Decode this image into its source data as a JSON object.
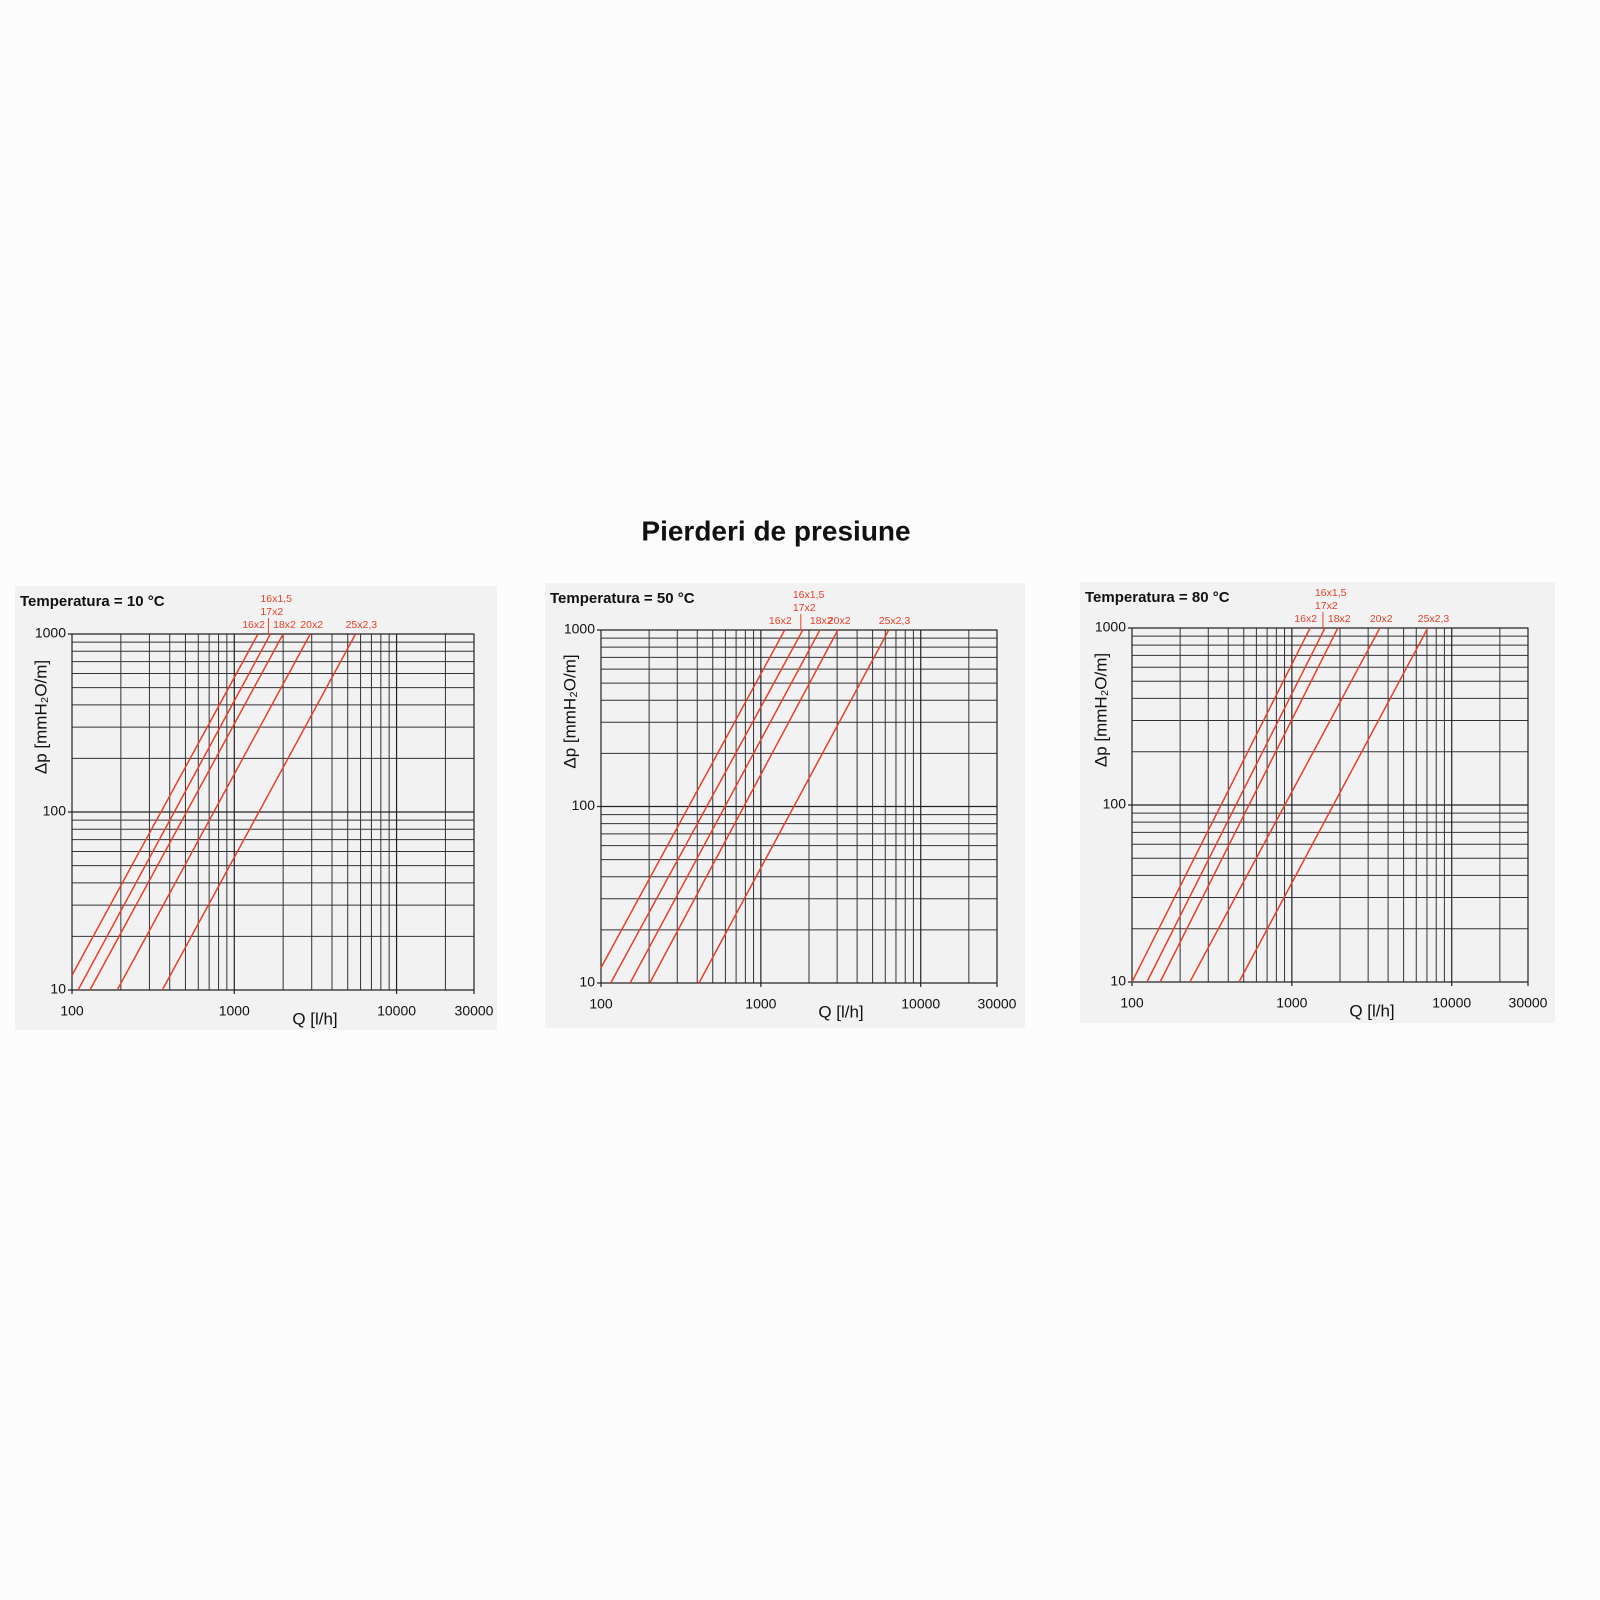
{
  "title": "Pierderi de presiune",
  "chart_data": [
    {
      "type": "line",
      "title": "Temperatura = 10 °C",
      "xlabel": "Q [l/h]",
      "ylabel": "Δp [mmH₂O/m]",
      "xscale": "log",
      "yscale": "log",
      "grid": true,
      "color": "#e8402a",
      "xlim": [
        100,
        30000
      ],
      "ylim": [
        10,
        1000
      ],
      "xticks": [
        100,
        1000,
        10000,
        30000
      ],
      "yticks": [
        10,
        100,
        1000
      ],
      "xminor": [
        200,
        300,
        400,
        500,
        600,
        700,
        800,
        900,
        2000,
        3000,
        4000,
        5000,
        6000,
        7000,
        8000,
        9000,
        20000
      ],
      "yminor": [
        20,
        30,
        40,
        50,
        60,
        70,
        80,
        90,
        200,
        300,
        400,
        500,
        600,
        700,
        800,
        900
      ],
      "series": [
        {
          "labels": [
            "16x2"
          ],
          "x": [
            100,
            1400
          ],
          "values": [
            12.1,
            1000
          ]
        },
        {
          "labels": [
            "16x1,5",
            "17x2"
          ],
          "x": [
            109,
            1670
          ],
          "values": [
            10,
            1000
          ]
        },
        {
          "labels": [
            "18x2"
          ],
          "x": [
            129,
            2000
          ],
          "values": [
            10,
            1000
          ]
        },
        {
          "labels": [
            "20x2"
          ],
          "x": [
            190,
            2940
          ],
          "values": [
            10,
            1000
          ]
        },
        {
          "labels": [
            "25x2,3"
          ],
          "x": [
            360,
            5590
          ],
          "values": [
            10,
            1000
          ]
        }
      ]
    },
    {
      "type": "line",
      "title": "Temperatura = 50 °C",
      "xlabel": "Q [l/h]",
      "ylabel": "Δp [mmH₂O/m]",
      "xscale": "log",
      "yscale": "log",
      "grid": true,
      "color": "#e8402a",
      "xlim": [
        100,
        30000
      ],
      "ylim": [
        10,
        1000
      ],
      "xticks": [
        100,
        1000,
        10000,
        30000
      ],
      "yticks": [
        10,
        100,
        1000
      ],
      "xminor": [
        200,
        300,
        400,
        500,
        600,
        700,
        800,
        900,
        2000,
        3000,
        4000,
        5000,
        6000,
        7000,
        8000,
        9000,
        20000
      ],
      "yminor": [
        20,
        30,
        40,
        50,
        60,
        70,
        80,
        90,
        200,
        300,
        400,
        500,
        600,
        700,
        800,
        900
      ],
      "series": [
        {
          "labels": [
            "16x2"
          ],
          "x": [
            100,
            1410
          ],
          "values": [
            12.2,
            1000
          ]
        },
        {
          "labels": [
            "16x1,5",
            "17x2"
          ],
          "x": [
            115,
            1830
          ],
          "values": [
            10,
            1000
          ]
        },
        {
          "labels": [
            "18x2"
          ],
          "x": [
            152,
            2340
          ],
          "values": [
            10,
            1000
          ]
        },
        {
          "labels": [
            "20x2"
          ],
          "x": [
            202,
            3030
          ],
          "values": [
            10,
            1000
          ]
        },
        {
          "labels": [
            "25x2,3"
          ],
          "x": [
            410,
            6310
          ],
          "values": [
            10,
            1000
          ]
        }
      ]
    },
    {
      "type": "line",
      "title": "Temperatura = 80 °C",
      "xlabel": "Q [l/h]",
      "ylabel": "Δp [mmH₂O/m]",
      "xscale": "log",
      "yscale": "log",
      "grid": true,
      "color": "#e8402a",
      "xlim": [
        100,
        30000
      ],
      "ylim": [
        10,
        1000
      ],
      "xticks": [
        100,
        1000,
        10000,
        30000
      ],
      "yticks": [
        10,
        100,
        1000
      ],
      "xminor": [
        200,
        300,
        400,
        500,
        600,
        700,
        800,
        900,
        2000,
        3000,
        4000,
        5000,
        6000,
        7000,
        8000,
        9000,
        20000
      ],
      "yminor": [
        20,
        30,
        40,
        50,
        60,
        70,
        80,
        90,
        200,
        300,
        400,
        500,
        600,
        700,
        800,
        900
      ],
      "series": [
        {
          "labels": [
            "16x2"
          ],
          "x": [
            100,
            1300
          ],
          "values": [
            10,
            1000
          ]
        },
        {
          "labels": [
            "16x1,5",
            "17x2"
          ],
          "x": [
            124,
            1610
          ],
          "values": [
            10,
            1000
          ]
        },
        {
          "labels": [
            "18x2"
          ],
          "x": [
            150,
            1940
          ],
          "values": [
            10,
            1000
          ]
        },
        {
          "labels": [
            "20x2"
          ],
          "x": [
            230,
            3550
          ],
          "values": [
            10,
            1000
          ]
        },
        {
          "labels": [
            "25x2,3"
          ],
          "x": [
            467,
            7080
          ],
          "values": [
            10,
            1000
          ]
        }
      ]
    }
  ]
}
